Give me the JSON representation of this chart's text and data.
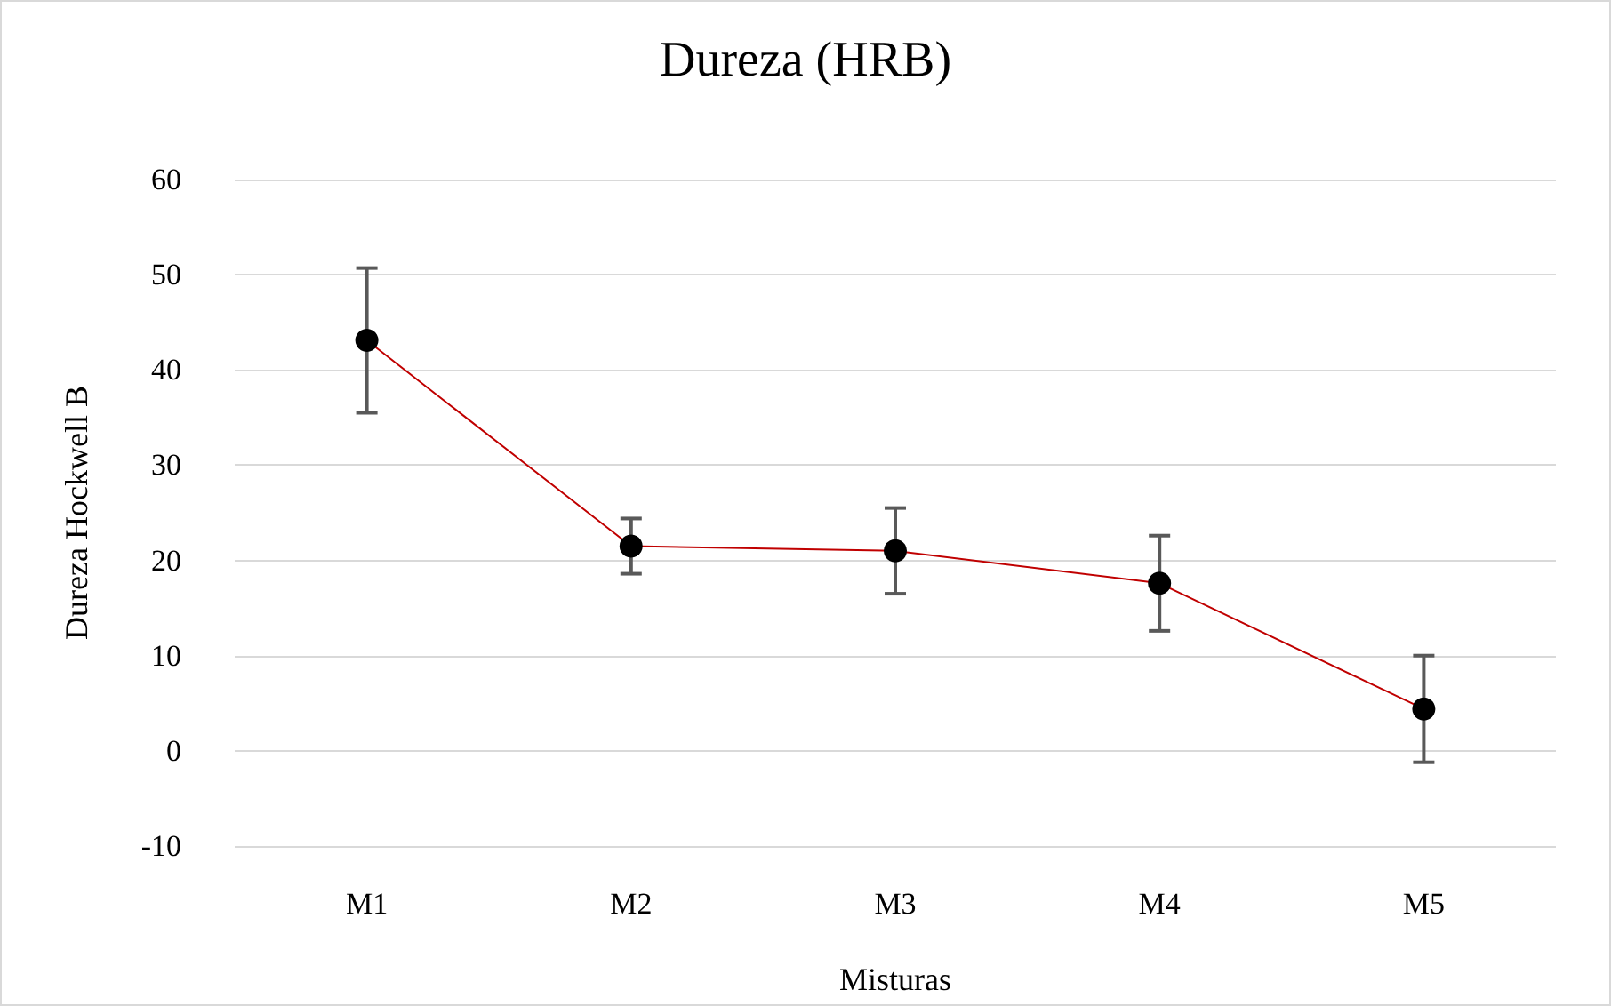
{
  "chart_data": {
    "type": "line",
    "title": "Dureza (HRB)",
    "xlabel": "Misturas",
    "ylabel": "Dureza Hockwell B",
    "categories": [
      "M1",
      "M2",
      "M3",
      "M4",
      "M5"
    ],
    "series": [
      {
        "color": "#c00000",
        "values": [
          43.1,
          21.5,
          21.0,
          17.6,
          4.4
        ],
        "errors": [
          7.6,
          2.9,
          4.5,
          5.0,
          5.6
        ]
      }
    ],
    "ylim": [
      -10,
      60
    ],
    "yticks": [
      -10,
      0,
      10,
      20,
      30,
      40,
      50,
      60
    ],
    "grid": "y",
    "marker": "circle",
    "line_style": "solid"
  }
}
